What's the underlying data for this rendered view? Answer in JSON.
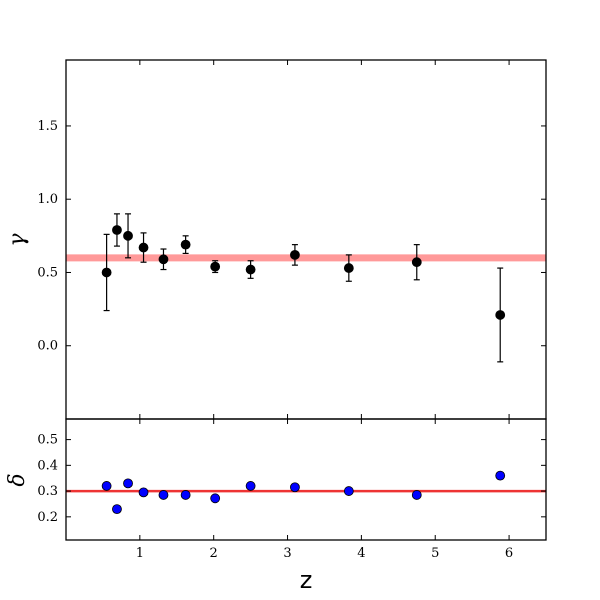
{
  "chart_data": [
    {
      "type": "scatter",
      "panel": "top",
      "ylabel": "γ",
      "xlim": [
        0,
        6.5
      ],
      "ylim": [
        -0.5,
        1.95
      ],
      "yticks": [
        0.0,
        0.5,
        1.0,
        1.5
      ],
      "ytick_labels": [
        "0.0",
        "0.5",
        "1.0",
        "1.5"
      ],
      "reference_line": {
        "y": 0.6,
        "color": "#ff9999"
      },
      "series": [
        {
          "marker_color": "#000000",
          "points": [
            {
              "x": 0.55,
              "y": 0.5,
              "err_low": 0.26,
              "err_high": 0.26
            },
            {
              "x": 0.69,
              "y": 0.79,
              "err_low": 0.11,
              "err_high": 0.11
            },
            {
              "x": 0.84,
              "y": 0.75,
              "err_low": 0.15,
              "err_high": 0.15
            },
            {
              "x": 1.05,
              "y": 0.67,
              "err_low": 0.1,
              "err_high": 0.1
            },
            {
              "x": 1.32,
              "y": 0.59,
              "err_low": 0.07,
              "err_high": 0.07
            },
            {
              "x": 1.62,
              "y": 0.69,
              "err_low": 0.06,
              "err_high": 0.06
            },
            {
              "x": 2.02,
              "y": 0.54,
              "err_low": 0.04,
              "err_high": 0.04
            },
            {
              "x": 2.5,
              "y": 0.52,
              "err_low": 0.06,
              "err_high": 0.06
            },
            {
              "x": 3.1,
              "y": 0.62,
              "err_low": 0.07,
              "err_high": 0.07
            },
            {
              "x": 3.83,
              "y": 0.53,
              "err_low": 0.09,
              "err_high": 0.09
            },
            {
              "x": 4.75,
              "y": 0.57,
              "err_low": 0.12,
              "err_high": 0.12
            },
            {
              "x": 5.88,
              "y": 0.21,
              "err_low": 0.32,
              "err_high": 0.32
            }
          ]
        }
      ]
    },
    {
      "type": "scatter",
      "panel": "bottom",
      "xlabel": "z",
      "ylabel": "δ",
      "xlim": [
        0,
        6.5
      ],
      "ylim": [
        0.11,
        0.58
      ],
      "xticks": [
        1,
        2,
        3,
        4,
        5,
        6
      ],
      "xtick_labels": [
        "1",
        "2",
        "3",
        "4",
        "5",
        "6"
      ],
      "yticks": [
        0.2,
        0.3,
        0.4,
        0.5
      ],
      "ytick_labels": [
        "0.2",
        "0.3",
        "0.4",
        "0.5"
      ],
      "reference_line": {
        "y": 0.3,
        "color": "#ee3333"
      },
      "series": [
        {
          "marker_color": "#0000ff",
          "points": [
            {
              "x": 0.55,
              "y": 0.32
            },
            {
              "x": 0.69,
              "y": 0.23
            },
            {
              "x": 0.84,
              "y": 0.33
            },
            {
              "x": 1.05,
              "y": 0.295
            },
            {
              "x": 1.32,
              "y": 0.285
            },
            {
              "x": 1.62,
              "y": 0.285
            },
            {
              "x": 2.02,
              "y": 0.272
            },
            {
              "x": 2.5,
              "y": 0.32
            },
            {
              "x": 3.1,
              "y": 0.315
            },
            {
              "x": 3.83,
              "y": 0.3
            },
            {
              "x": 4.75,
              "y": 0.285
            },
            {
              "x": 5.88,
              "y": 0.36
            }
          ]
        }
      ]
    }
  ]
}
